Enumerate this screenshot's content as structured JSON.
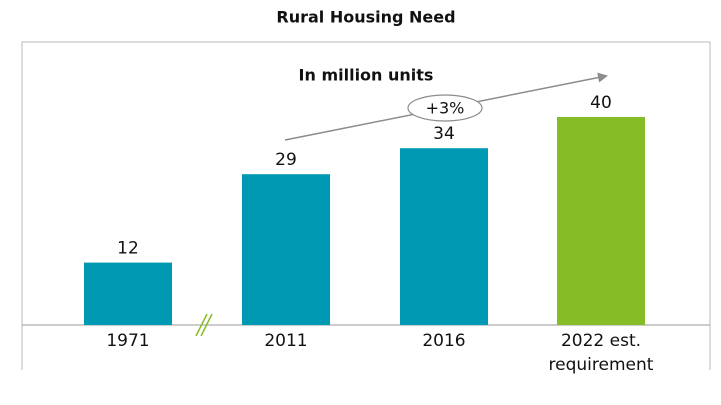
{
  "chart_data": {
    "type": "bar",
    "title": "Rural Housing Need",
    "subtitle": "In million units",
    "categories": [
      "1971",
      "2011",
      "2016",
      "2022 est. requirement"
    ],
    "values": [
      12,
      29,
      34,
      40
    ],
    "colors": [
      "#0099b4",
      "#0099b4",
      "#0099b4",
      "#86bc25"
    ],
    "annotation": "+3%"
  }
}
